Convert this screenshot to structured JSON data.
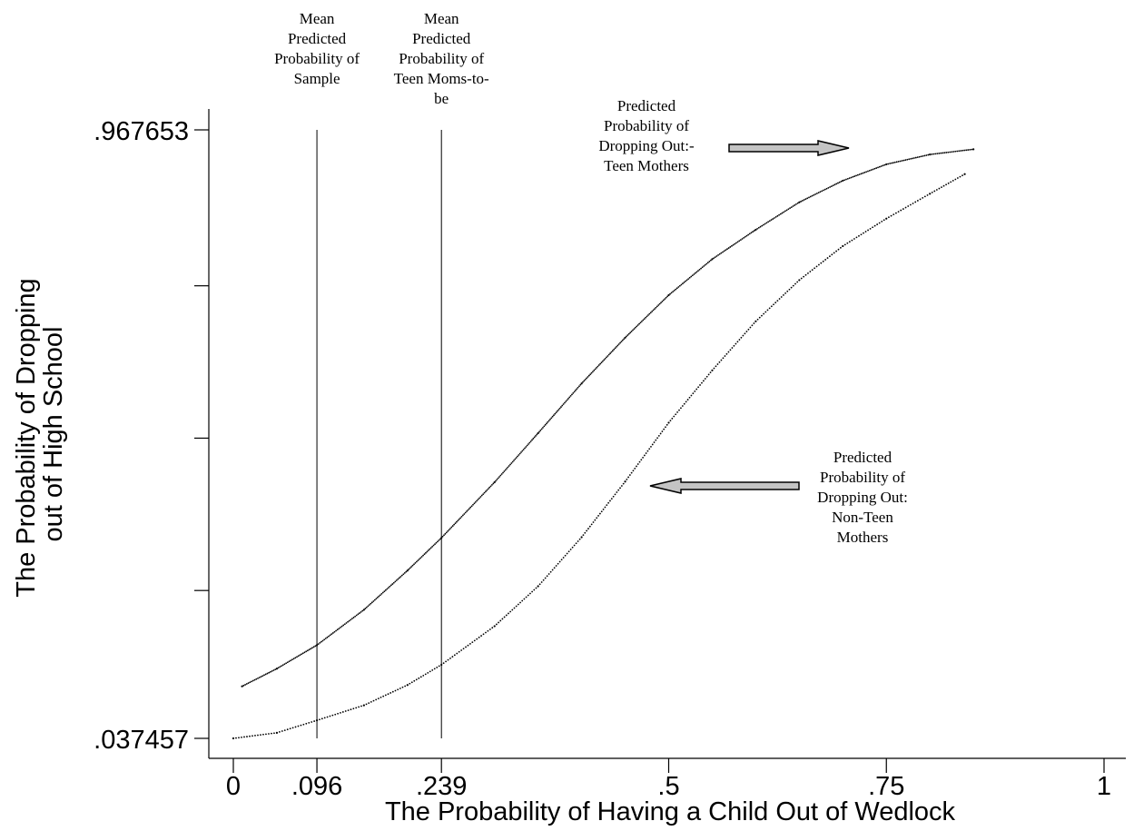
{
  "chart_data": {
    "type": "scatter",
    "xlabel": "The Probability of Having a Child Out of Wedlock",
    "ylabel_lines": [
      "The Probability of Dropping",
      "out of High School"
    ],
    "xlim": [
      0,
      1
    ],
    "ylim": [
      0.037457,
      0.967653
    ],
    "x_ticks": [
      {
        "value": 0,
        "label": "0"
      },
      {
        "value": 0.096,
        "label": ".096"
      },
      {
        "value": 0.239,
        "label": ".239"
      },
      {
        "value": 0.5,
        "label": ".5"
      },
      {
        "value": 0.75,
        "label": ".75"
      },
      {
        "value": 1,
        "label": "1"
      }
    ],
    "y_ticks": [
      {
        "value": 0.037457,
        "label": ".037457"
      },
      {
        "value": 0.2635,
        "label": ""
      },
      {
        "value": 0.4964,
        "label": ""
      },
      {
        "value": 0.7293,
        "label": ""
      },
      {
        "value": 0.967653,
        "label": ".967653"
      }
    ],
    "reference_lines": [
      {
        "x": 0.096,
        "label_lines": [
          "Mean",
          "Predicted",
          "Probability of",
          "Sample"
        ]
      },
      {
        "x": 0.239,
        "label_lines": [
          "Mean",
          "Predicted",
          "Probability of",
          "Teen Moms-to-",
          "be"
        ]
      }
    ],
    "series": [
      {
        "key": "teen",
        "x": [
          0.01,
          0.05,
          0.096,
          0.15,
          0.2,
          0.239,
          0.3,
          0.35,
          0.4,
          0.45,
          0.5,
          0.55,
          0.6,
          0.65,
          0.7,
          0.75,
          0.8,
          0.85
        ],
        "y": [
          0.117,
          0.144,
          0.18,
          0.234,
          0.294,
          0.344,
          0.429,
          0.504,
          0.58,
          0.65,
          0.715,
          0.77,
          0.815,
          0.857,
          0.89,
          0.915,
          0.93,
          0.938
        ],
        "density": 2
      },
      {
        "key": "nonteen",
        "x": [
          0,
          0.05,
          0.096,
          0.15,
          0.2,
          0.239,
          0.3,
          0.35,
          0.4,
          0.45,
          0.5,
          0.55,
          0.6,
          0.65,
          0.7,
          0.75,
          0.8,
          0.84
        ],
        "y": [
          0.037457,
          0.046,
          0.065,
          0.088,
          0.119,
          0.15,
          0.209,
          0.27,
          0.345,
          0.43,
          0.52,
          0.6,
          0.675,
          0.738,
          0.79,
          0.832,
          0.87,
          0.9
        ],
        "density": 3
      }
    ],
    "annotations": [
      {
        "target": "teen",
        "label_lines": [
          "Predicted",
          "Probability of",
          "Dropping Out:-",
          "Teen Mothers"
        ]
      },
      {
        "target": "nonteen",
        "label_lines": [
          "Predicted",
          "Probability of",
          "Dropping Out:",
          "Non-Teen",
          "Mothers"
        ]
      }
    ],
    "grid": false,
    "legend": "none"
  }
}
